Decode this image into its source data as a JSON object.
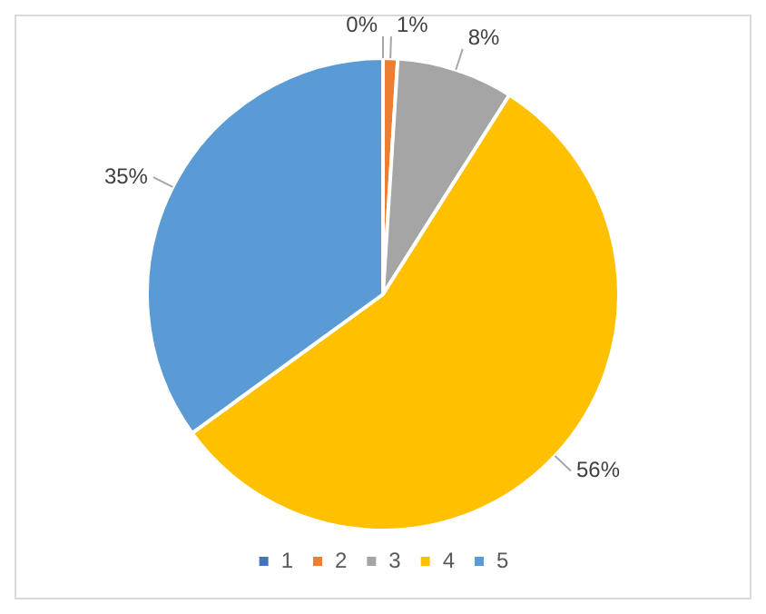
{
  "chart_data": {
    "type": "pie",
    "categories": [
      "1",
      "2",
      "3",
      "4",
      "5"
    ],
    "values": [
      0,
      1,
      8,
      56,
      35
    ],
    "colors": [
      "#4472c4",
      "#ed7d31",
      "#a5a5a5",
      "#ffc000",
      "#5b9bd5"
    ],
    "value_labels": [
      "0%",
      "1%",
      "8%",
      "56%",
      "35%"
    ],
    "legend": "bottom"
  }
}
